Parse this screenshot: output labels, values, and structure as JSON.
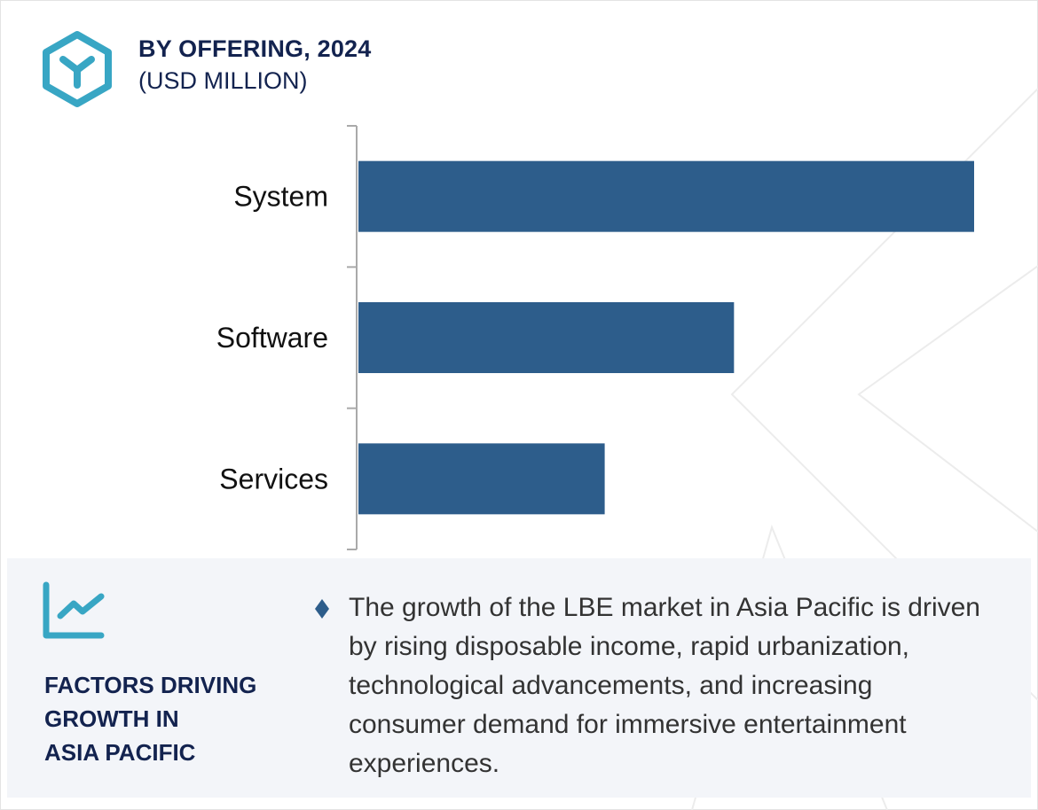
{
  "header": {
    "title": "BY OFFERING, 2024",
    "subtitle": "(USD MILLION)",
    "icon": "hexagon-cube-icon"
  },
  "chart_data": {
    "type": "bar",
    "orientation": "horizontal",
    "title": "BY OFFERING, 2024",
    "unit": "(USD MILLION)",
    "categories": [
      "System",
      "Software",
      "Services"
    ],
    "values_relative": [
      1.0,
      0.61,
      0.4
    ],
    "bar_color": "#2d5d8b",
    "grid": false,
    "legend": "none",
    "value_labels": false
  },
  "factors": {
    "icon": "trend-chart-icon",
    "heading_lines": [
      "FACTORS DRIVING",
      "GROWTH IN",
      "ASIA PACIFIC"
    ],
    "bullet_icon": "diamond-icon",
    "text": "The growth of the LBE market in Asia Pacific is driven by rising disposable income, rapid urbanization, technological advancements, and increasing consumer demand for immersive entertainment experiences."
  },
  "colors": {
    "accent": "#38a6c4",
    "navy": "#13234f",
    "bar": "#2d5d8b",
    "panel_bg": "#f3f5f9"
  }
}
